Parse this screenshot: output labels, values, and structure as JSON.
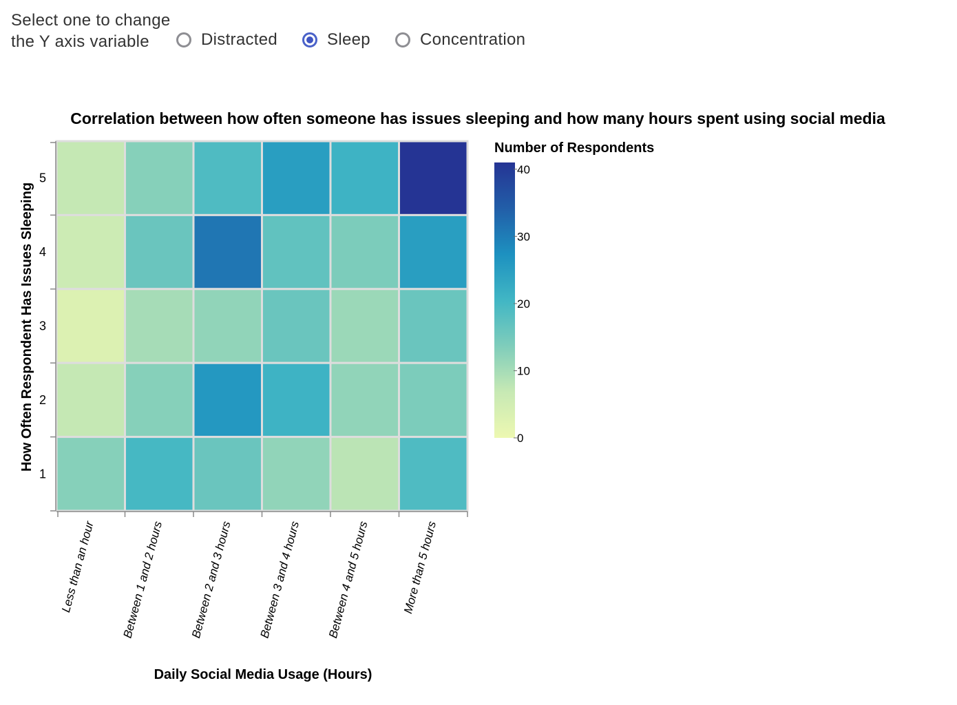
{
  "controls": {
    "label": "Select one to change the Y axis variable",
    "options": [
      {
        "label": "Distracted",
        "checked": false
      },
      {
        "label": "Sleep",
        "checked": true
      },
      {
        "label": "Concentration",
        "checked": false
      }
    ]
  },
  "chart_data": {
    "type": "heatmap",
    "title": "Correlation between how often someone has issues sleeping and how many hours spent using social media",
    "xlabel": "Daily Social Media Usage (Hours)",
    "ylabel": "How Often Respondent Has Issues Sleeping",
    "x_categories": [
      "Less than an hour",
      "Between 1 and 2 hours",
      "Between 2 and 3 hours",
      "Between 3 and 4 hours",
      "Between 4 and 5 hours",
      "More than 5 hours"
    ],
    "y_categories": [
      "5",
      "4",
      "3",
      "2",
      "1"
    ],
    "values": [
      [
        7,
        13,
        19,
        25,
        21,
        41
      ],
      [
        6,
        16,
        31,
        17,
        14,
        25
      ],
      [
        3,
        10,
        12,
        16,
        11,
        16
      ],
      [
        7,
        13,
        26,
        21,
        12,
        14
      ],
      [
        13,
        20,
        16,
        12,
        8,
        19
      ]
    ],
    "legend": {
      "title": "Number of Respondents",
      "ticks": [
        40,
        30,
        20,
        10,
        0
      ],
      "domain": [
        0,
        41
      ],
      "placement": "right"
    },
    "color_scheme": [
      "#edf8b1",
      "#c7e9b4",
      "#7fcdbb",
      "#41b6c4",
      "#1d91c0",
      "#225ea8",
      "#253494"
    ]
  }
}
